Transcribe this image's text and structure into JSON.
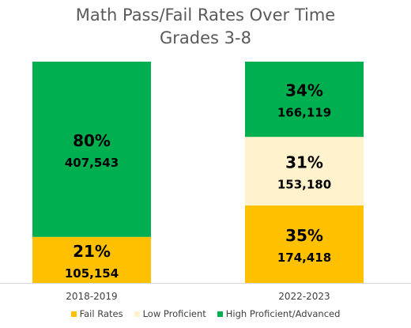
{
  "chart_data": {
    "type": "bar",
    "stacked": true,
    "title": "Math Pass/Fail Rates Over Time",
    "subtitle": "Grades 3-8",
    "categories": [
      "2018-2019",
      "2022-2023"
    ],
    "ylim": [
      0,
      100
    ],
    "grid": false,
    "legend_position": "bottom",
    "series": [
      {
        "name": "Fail Rates",
        "color": "#FFC000",
        "values": [
          21,
          35
        ],
        "percent_labels": [
          "21%",
          "35%"
        ],
        "counts": [
          "105,154",
          "174,418"
        ]
      },
      {
        "name": "Low Proficient",
        "color": "#FFF2CC",
        "values": [
          0,
          31
        ],
        "percent_labels": [
          "",
          "31%"
        ],
        "counts": [
          "",
          "153,180"
        ]
      },
      {
        "name": "High Proficient/Advanced",
        "color": "#00B050",
        "values": [
          80,
          34
        ],
        "percent_labels": [
          "80%",
          "34%"
        ],
        "counts": [
          "407,543",
          "166,119"
        ]
      }
    ]
  }
}
